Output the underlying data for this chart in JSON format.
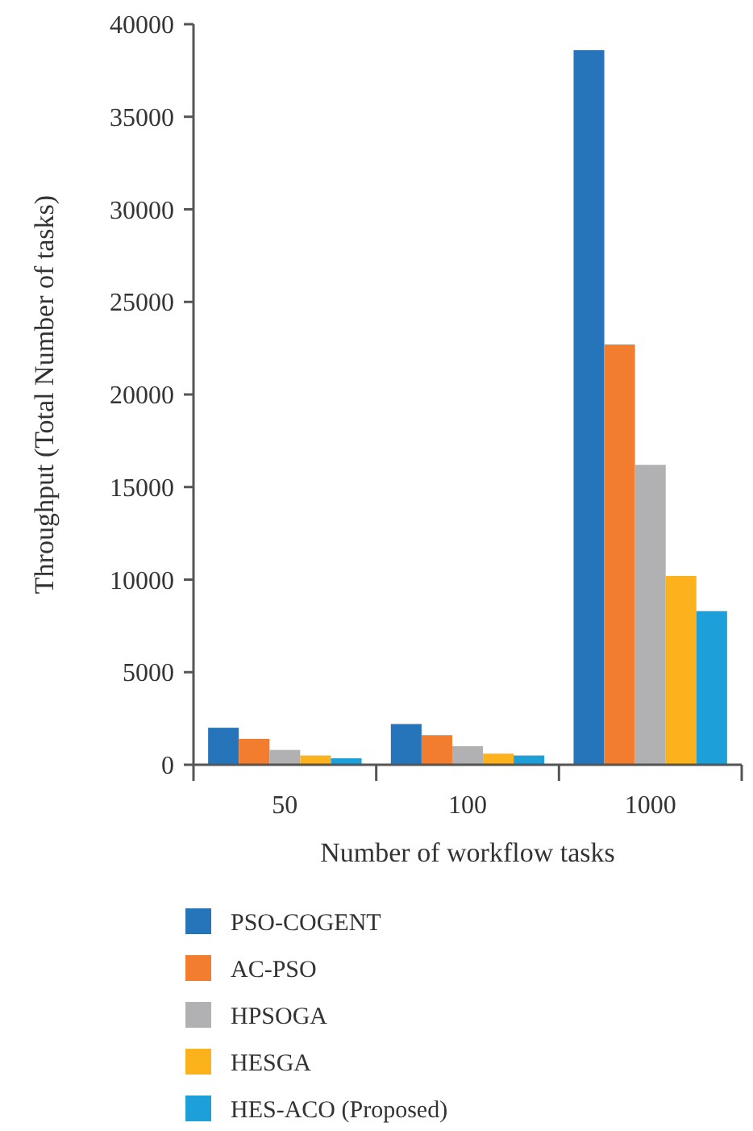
{
  "chart_data": {
    "type": "bar",
    "xlabel": "Number of workflow tasks",
    "ylabel": "Throughput (Total Number of tasks)",
    "categories": [
      "50",
      "100",
      "1000"
    ],
    "series": [
      {
        "name": "PSO-COGENT",
        "color": "#2675ba",
        "values": [
          2000,
          2200,
          38600
        ]
      },
      {
        "name": "AC-PSO",
        "color": "#f27d2e",
        "values": [
          1400,
          1600,
          22700
        ]
      },
      {
        "name": "HPSOGA",
        "color": "#b1b1b3",
        "values": [
          800,
          1000,
          16200
        ]
      },
      {
        "name": "HESGA",
        "color": "#fbb21c",
        "values": [
          500,
          600,
          10200
        ]
      },
      {
        "name": "HES-ACO (Proposed)",
        "color": "#1d9fd9",
        "values": [
          350,
          500,
          8300
        ]
      }
    ],
    "ylim": [
      0,
      40000
    ],
    "yticks": [
      0,
      5000,
      10000,
      15000,
      20000,
      25000,
      30000,
      35000,
      40000
    ],
    "grid": false,
    "legend": "bottom"
  }
}
